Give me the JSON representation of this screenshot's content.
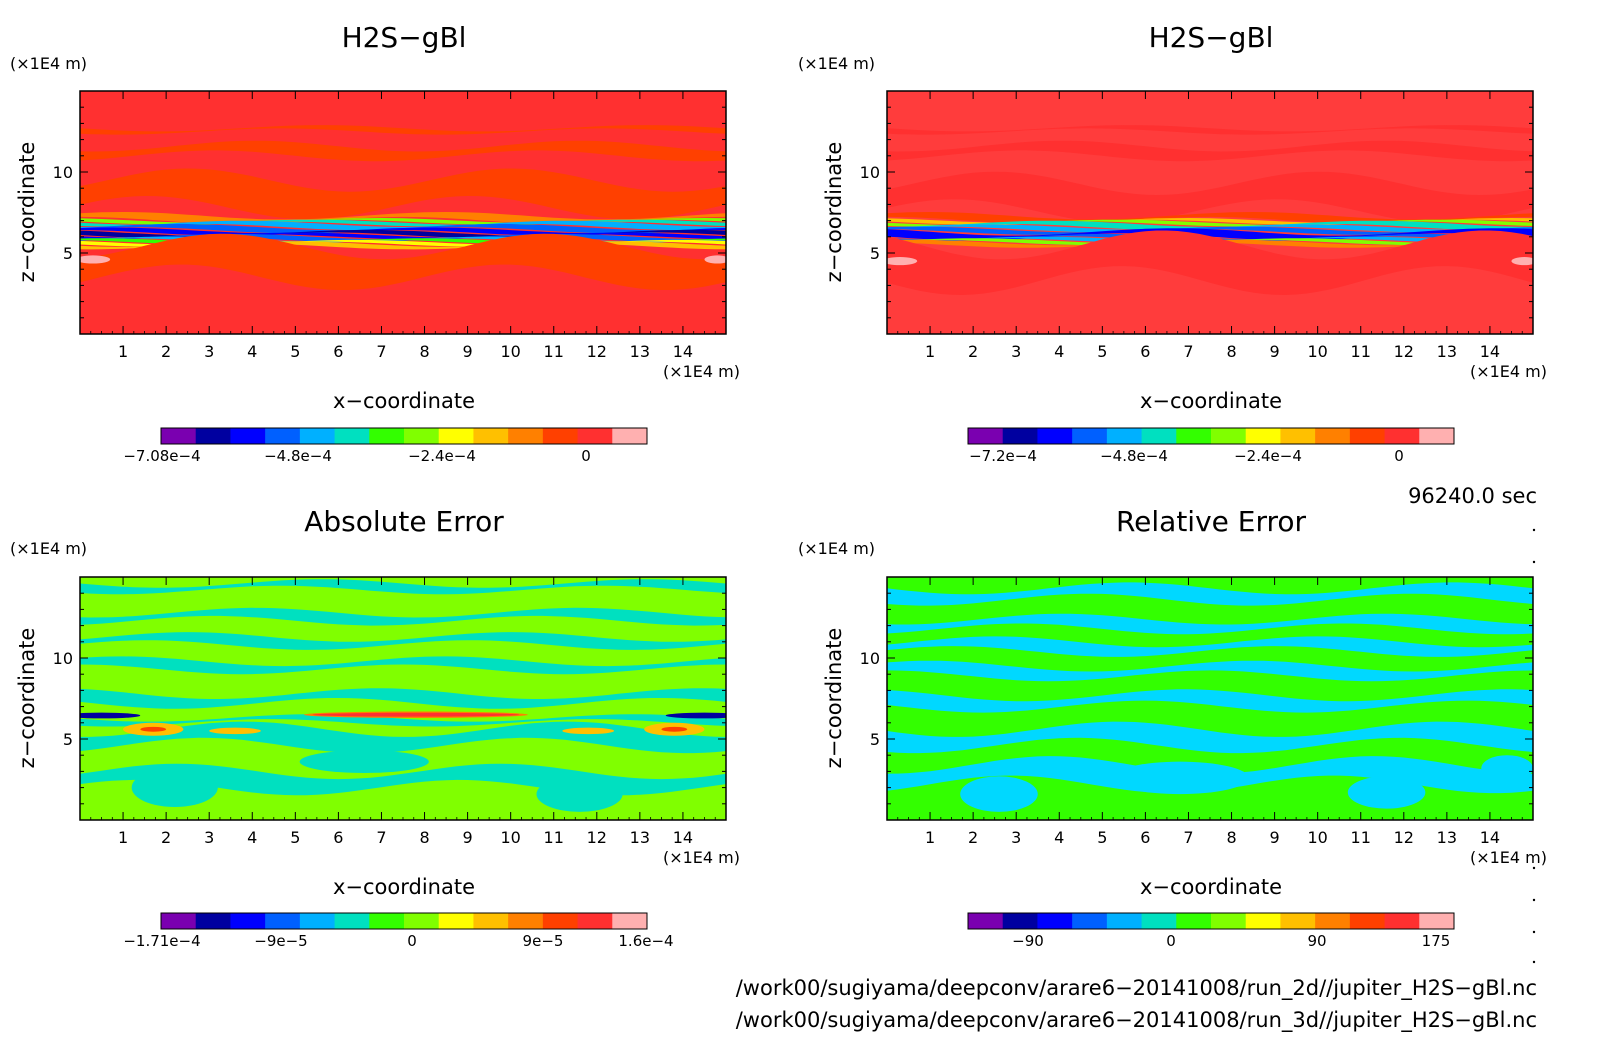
{
  "colors": {
    "palette": [
      "#7a00b0",
      "#0000a0",
      "#0000ff",
      "#0060ff",
      "#00b0ff",
      "#00e0c0",
      "#33ff00",
      "#80ff00",
      "#ffff00",
      "#ffc000",
      "#ff8000",
      "#ff4000",
      "#ff3030",
      "#ffb0b0"
    ]
  },
  "panels": [
    {
      "title": "H2S−gBl",
      "z_unit": "(×1E4 m)",
      "x_unit": "(×1E4 m)",
      "xlabel": "x−coordinate",
      "ylabel": "z−coordinate",
      "colorbar": {
        "ticks": [
          "−7.08e−4",
          "−4.8e−4",
          "−2.4e−4",
          "0"
        ]
      }
    },
    {
      "title": "H2S−gBl",
      "z_unit": "(×1E4 m)",
      "x_unit": "(×1E4 m)",
      "xlabel": "x−coordinate",
      "ylabel": "z−coordinate",
      "colorbar": {
        "ticks": [
          "−7.2e−4",
          "−4.8e−4",
          "−2.4e−4",
          "0"
        ]
      }
    },
    {
      "title": "Absolute Error",
      "z_unit": "(×1E4 m)",
      "x_unit": "(×1E4 m)",
      "xlabel": "x−coordinate",
      "ylabel": "z−coordinate",
      "colorbar": {
        "ticks": [
          "−1.71e−4",
          "−9e−5",
          "0",
          "9e−5",
          "1.6e−4"
        ]
      }
    },
    {
      "title": "Relative Error",
      "z_unit": "(×1E4 m)",
      "x_unit": "(×1E4 m)",
      "xlabel": "x−coordinate",
      "ylabel": "z−coordinate",
      "colorbar": {
        "ticks": [
          "−90",
          "0",
          "90",
          "175"
        ]
      }
    }
  ],
  "time_label": "96240.0 sec",
  "file_paths": [
    "/work00/sugiyama/deepconv/arare6−20141008/run_2d//jupiter_H2S−gBl.nc",
    "/work00/sugiyama/deepconv/arare6−20141008/run_3d//jupiter_H2S−gBl.nc"
  ],
  "chart_data": [
    {
      "type": "heatmap",
      "title": "H2S−gBl",
      "xlabel": "x−coordinate",
      "ylabel": "z−coordinate",
      "xlim": [
        0,
        15
      ],
      "ylim": [
        0,
        15
      ],
      "x_ticks": [
        1,
        2,
        3,
        4,
        5,
        6,
        7,
        8,
        9,
        10,
        11,
        12,
        13,
        14
      ],
      "y_ticks": [
        5,
        10
      ],
      "units": "×1E4 m",
      "colorbar_ticks": [
        "−7.08e−4",
        "−4.8e−4",
        "−2.4e−4",
        "0"
      ],
      "colorbar_range": [
        -0.000708,
        0.0001
      ],
      "field": {
        "background": "#ff3030",
        "bands": [
          {
            "z": [
              12.5,
              12.7
            ],
            "color": "#ff4000"
          },
          {
            "z": [
              11.0,
              11.6
            ],
            "color": "#ff4000"
          },
          {
            "z": [
              7.8,
              9.5
            ],
            "color": "#ff4000"
          },
          {
            "z": [
              7.0,
              7.3
            ],
            "color": "#ff8000"
          },
          {
            "z": [
              6.9,
              7.0
            ],
            "color": "#80ff00"
          },
          {
            "z": [
              6.8,
              6.9
            ],
            "color": "#00e0c0"
          },
          {
            "z": [
              6.6,
              6.8
            ],
            "color": "#00b0ff"
          },
          {
            "z": [
              6.4,
              6.6
            ],
            "color": "#0060ff"
          },
          {
            "z": [
              6.25,
              6.4
            ],
            "color": "#0000ff"
          },
          {
            "z": [
              6.1,
              6.25
            ],
            "color": "#0000a0"
          },
          {
            "z": [
              6.0,
              6.1
            ],
            "color": "#0000ff"
          },
          {
            "z": [
              5.85,
              6.0
            ],
            "color": "#0060ff"
          },
          {
            "z": [
              5.75,
              5.85
            ],
            "color": "#00b0ff"
          },
          {
            "z": [
              5.65,
              5.75
            ],
            "color": "#33ff00"
          },
          {
            "z": [
              5.55,
              5.65
            ],
            "color": "#ffff00"
          },
          {
            "z": [
              5.4,
              5.55
            ],
            "color": "#ffc000"
          },
          {
            "z": [
              3.5,
              5.4
            ],
            "color": "#ff4000"
          }
        ],
        "blobs": [
          {
            "x": 0.3,
            "z": 4.6,
            "rx": 0.4,
            "rz": 0.25,
            "color": "#ffb0b0"
          },
          {
            "x": 14.8,
            "z": 4.6,
            "rx": 0.3,
            "rz": 0.25,
            "color": "#ffb0b0"
          }
        ]
      }
    },
    {
      "type": "heatmap",
      "title": "H2S−gBl",
      "xlabel": "x−coordinate",
      "ylabel": "z−coordinate",
      "xlim": [
        0,
        15
      ],
      "ylim": [
        0,
        15
      ],
      "x_ticks": [
        1,
        2,
        3,
        4,
        5,
        6,
        7,
        8,
        9,
        10,
        11,
        12,
        13,
        14
      ],
      "y_ticks": [
        5,
        10
      ],
      "units": "×1E4 m",
      "colorbar_ticks": [
        "−7.2e−4",
        "−4.8e−4",
        "−2.4e−4",
        "0"
      ],
      "colorbar_range": [
        -0.00072,
        0.0001
      ],
      "field": {
        "background": "#ff3c3c",
        "bands": [
          {
            "z": [
              12.5,
              12.7
            ],
            "color": "#ff3030"
          },
          {
            "z": [
              11.0,
              11.6
            ],
            "color": "#ff3030"
          },
          {
            "z": [
              7.6,
              9.3
            ],
            "color": "#ff3030"
          },
          {
            "z": [
              7.0,
              7.3
            ],
            "color": "#ff4000"
          },
          {
            "z": [
              6.9,
              7.0
            ],
            "color": "#ffc000"
          },
          {
            "z": [
              6.8,
              6.9
            ],
            "color": "#80ff00"
          },
          {
            "z": [
              6.6,
              6.8
            ],
            "color": "#00e0c0"
          },
          {
            "z": [
              6.45,
              6.6
            ],
            "color": "#00b0ff"
          },
          {
            "z": [
              6.3,
              6.45
            ],
            "color": "#0060ff"
          },
          {
            "z": [
              6.0,
              6.3
            ],
            "color": "#0000ff"
          },
          {
            "z": [
              5.85,
              6.0
            ],
            "color": "#0060ff"
          },
          {
            "z": [
              5.75,
              5.85
            ],
            "color": "#00b0ff"
          },
          {
            "z": [
              5.65,
              5.75
            ],
            "color": "#80ff00"
          },
          {
            "z": [
              5.5,
              5.65
            ],
            "color": "#ff8000"
          },
          {
            "z": [
              3.3,
              5.5
            ],
            "color": "#ff3030"
          }
        ],
        "blobs": [
          {
            "x": 0.3,
            "z": 4.5,
            "rx": 0.4,
            "rz": 0.25,
            "color": "#ffb0b0"
          },
          {
            "x": 14.8,
            "z": 4.5,
            "rx": 0.3,
            "rz": 0.25,
            "color": "#ffb0b0"
          }
        ]
      }
    },
    {
      "type": "heatmap",
      "title": "Absolute Error",
      "xlabel": "x−coordinate",
      "ylabel": "z−coordinate",
      "xlim": [
        0,
        15
      ],
      "ylim": [
        0,
        15
      ],
      "x_ticks": [
        1,
        2,
        3,
        4,
        5,
        6,
        7,
        8,
        9,
        10,
        11,
        12,
        13,
        14
      ],
      "y_ticks": [
        5,
        10
      ],
      "units": "×1E4 m",
      "colorbar_ticks": [
        "−1.71e−4",
        "−9e−5",
        "0",
        "9e−5",
        "1.6e−4"
      ],
      "colorbar_range": [
        -0.000171,
        0.00016
      ],
      "field": {
        "background": "#80ff00",
        "bands": [
          {
            "z": [
              14.2,
              14.6
            ],
            "color": "#00e0c0"
          },
          {
            "z": [
              12.3,
              12.8
            ],
            "color": "#00e0c0"
          },
          {
            "z": [
              10.8,
              11.3
            ],
            "color": "#00e0c0"
          },
          {
            "z": [
              9.3,
              9.8
            ],
            "color": "#00e0c0"
          },
          {
            "z": [
              7.2,
              7.8
            ],
            "color": "#00e0c0"
          },
          {
            "z": [
              6.0,
              6.3
            ],
            "color": "#00e0c0"
          },
          {
            "z": [
              4.6,
              5.6
            ],
            "color": "#00e0c0"
          },
          {
            "z": [
              2.0,
              3.0
            ],
            "color": "#00e0c0"
          }
        ],
        "blobs": [
          {
            "x": 0.5,
            "z": 6.45,
            "rx": 0.9,
            "rz": 0.18,
            "color": "#0000a0"
          },
          {
            "x": 14.5,
            "z": 6.45,
            "rx": 0.9,
            "rz": 0.18,
            "color": "#0000a0"
          },
          {
            "x": 7.8,
            "z": 6.5,
            "rx": 2.6,
            "rz": 0.2,
            "color": "#ff8000"
          },
          {
            "x": 7.8,
            "z": 6.5,
            "rx": 2.4,
            "rz": 0.12,
            "color": "#ff3030"
          },
          {
            "x": 1.7,
            "z": 5.6,
            "rx": 0.7,
            "rz": 0.4,
            "color": "#ffc000"
          },
          {
            "x": 1.7,
            "z": 5.6,
            "rx": 0.3,
            "rz": 0.15,
            "color": "#ff4000"
          },
          {
            "x": 13.8,
            "z": 5.6,
            "rx": 0.7,
            "rz": 0.4,
            "color": "#ffc000"
          },
          {
            "x": 13.8,
            "z": 5.6,
            "rx": 0.3,
            "rz": 0.15,
            "color": "#ff4000"
          },
          {
            "x": 3.6,
            "z": 5.5,
            "rx": 0.6,
            "rz": 0.2,
            "color": "#ffc000"
          },
          {
            "x": 11.8,
            "z": 5.5,
            "rx": 0.6,
            "rz": 0.2,
            "color": "#ffc000"
          },
          {
            "x": 2.2,
            "z": 2.0,
            "rx": 1.0,
            "rz": 1.2,
            "color": "#00e0c0"
          },
          {
            "x": 11.6,
            "z": 1.6,
            "rx": 1.0,
            "rz": 1.1,
            "color": "#00e0c0"
          },
          {
            "x": 6.6,
            "z": 3.6,
            "rx": 1.5,
            "rz": 0.7,
            "color": "#00e0c0"
          }
        ]
      }
    },
    {
      "type": "heatmap",
      "title": "Relative Error",
      "xlabel": "x−coordinate",
      "ylabel": "z−coordinate",
      "xlim": [
        0,
        15
      ],
      "ylim": [
        0,
        15
      ],
      "x_ticks": [
        1,
        2,
        3,
        4,
        5,
        6,
        7,
        8,
        9,
        10,
        11,
        12,
        13,
        14
      ],
      "y_ticks": [
        5,
        10
      ],
      "units": "×1E4 m",
      "colorbar_ticks": [
        "−90",
        "0",
        "90",
        "175"
      ],
      "colorbar_range": [
        -140,
        175
      ],
      "field": {
        "background": "#33ff00",
        "bands": [
          {
            "z": [
              13.6,
              14.3
            ],
            "color": "#00d8ff"
          },
          {
            "z": [
              11.8,
              12.4
            ],
            "color": "#00d8ff"
          },
          {
            "z": [
              10.4,
              11.0
            ],
            "color": "#00d8ff"
          },
          {
            "z": [
              8.9,
              9.5
            ],
            "color": "#00d8ff"
          },
          {
            "z": [
              7.0,
              7.7
            ],
            "color": "#00d8ff"
          },
          {
            "z": [
              4.6,
              5.6
            ],
            "color": "#00d8ff"
          },
          {
            "z": [
              2.2,
              3.4
            ],
            "color": "#00d8ff"
          }
        ],
        "blobs": [
          {
            "x": 2.6,
            "z": 1.6,
            "rx": 0.9,
            "rz": 1.1,
            "color": "#00d8ff"
          },
          {
            "x": 6.8,
            "z": 2.6,
            "rx": 1.6,
            "rz": 1.0,
            "color": "#00d8ff"
          },
          {
            "x": 11.6,
            "z": 1.7,
            "rx": 0.9,
            "rz": 1.0,
            "color": "#00d8ff"
          },
          {
            "x": 14.4,
            "z": 3.2,
            "rx": 0.6,
            "rz": 0.8,
            "color": "#00d8ff"
          }
        ]
      }
    }
  ]
}
